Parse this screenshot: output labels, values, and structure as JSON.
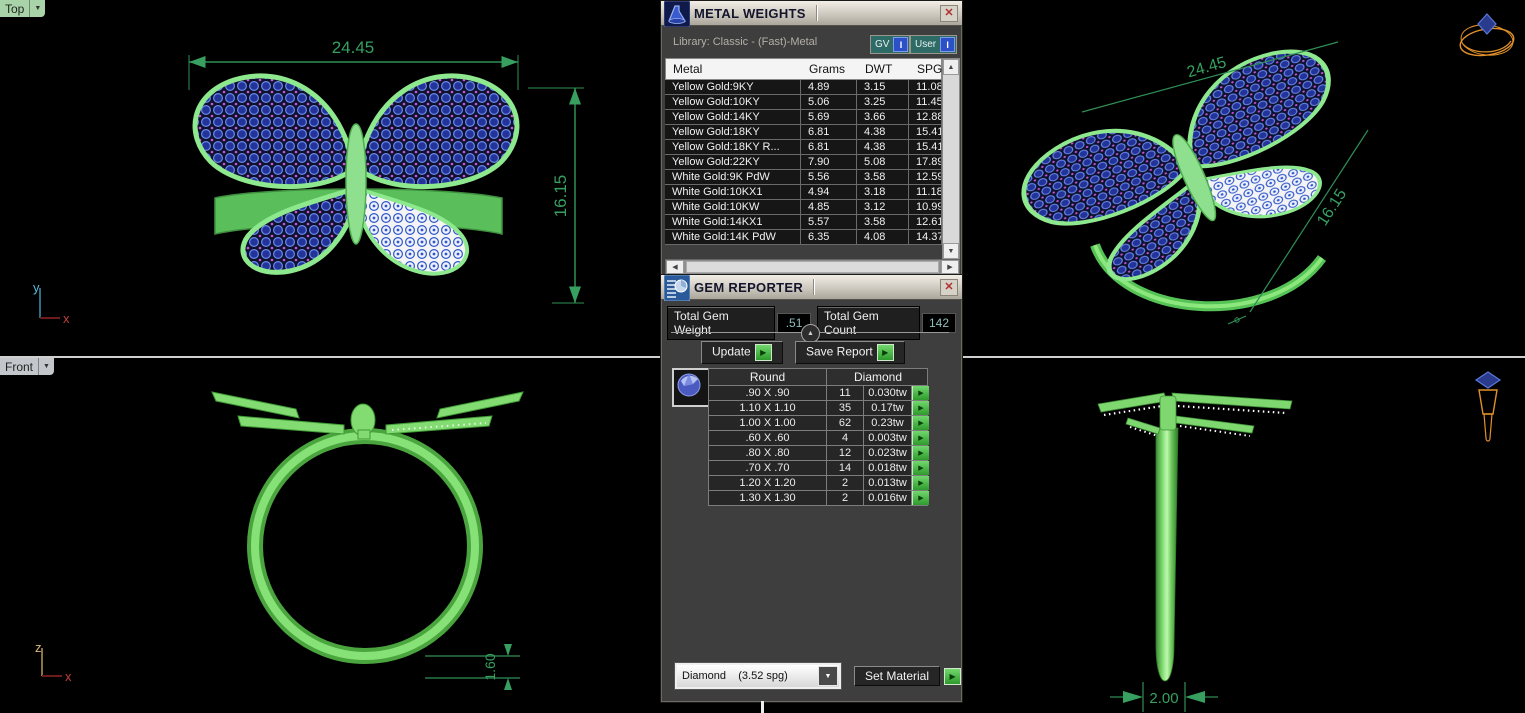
{
  "viewports": {
    "top": {
      "label": "Top",
      "width_dim": "24.45",
      "height_dim": "16.15",
      "axis_v": "y",
      "axis_h": "x"
    },
    "front": {
      "label": "Front",
      "band_dim": "1.60",
      "axis_v": "z",
      "axis_h": "x"
    },
    "perspective": {
      "width_dim": "24.45",
      "height_dim": "16.15"
    },
    "right": {
      "width_dim": "2.00"
    }
  },
  "metal_weights": {
    "title": "METAL WEIGHTS",
    "library_label": "Library: Classic - (Fast)-Metal",
    "toggles": [
      {
        "label": "GV",
        "button": "I"
      },
      {
        "label": "User",
        "button": "I"
      }
    ],
    "columns": [
      "Metal",
      "Grams",
      "DWT",
      "SPG"
    ],
    "rows": [
      [
        "Yellow Gold:9KY",
        "4.89",
        "3.15",
        "11.08"
      ],
      [
        "Yellow Gold:10KY",
        "5.06",
        "3.25",
        "11.45"
      ],
      [
        "Yellow Gold:14KY",
        "5.69",
        "3.66",
        "12.88"
      ],
      [
        "Yellow Gold:18KY",
        "6.81",
        "4.38",
        "15.41"
      ],
      [
        "Yellow Gold:18KY R...",
        "6.81",
        "4.38",
        "15.41"
      ],
      [
        "Yellow Gold:22KY",
        "7.90",
        "5.08",
        "17.89"
      ],
      [
        "White Gold:9K PdW",
        "5.56",
        "3.58",
        "12.59"
      ],
      [
        "White Gold:10KX1",
        "4.94",
        "3.18",
        "11.18"
      ],
      [
        "White Gold:10KW",
        "4.85",
        "3.12",
        "10.99"
      ],
      [
        "White Gold:14KX1",
        "5.57",
        "3.58",
        "12.61"
      ],
      [
        "White Gold:14K PdW",
        "6.35",
        "4.08",
        "14.37"
      ]
    ]
  },
  "gem_reporter": {
    "title": "GEM REPORTER",
    "total_weight_label": "Total Gem Weight",
    "total_weight": ".51",
    "total_count_label": "Total Gem Count",
    "total_count": "142",
    "update_label": "Update",
    "save_report_label": "Save Report",
    "table": {
      "shape_header": "Round",
      "material_header": "Diamond",
      "rows": [
        {
          "size": ".90 X .90",
          "count": "11",
          "weight": "0.030tw"
        },
        {
          "size": "1.10 X 1.10",
          "count": "35",
          "weight": "0.17tw"
        },
        {
          "size": "1.00 X 1.00",
          "count": "62",
          "weight": "0.23tw"
        },
        {
          "size": ".60 X .60",
          "count": "4",
          "weight": "0.003tw"
        },
        {
          "size": ".80 X .80",
          "count": "12",
          "weight": "0.023tw"
        },
        {
          "size": ".70 X .70",
          "count": "14",
          "weight": "0.018tw"
        },
        {
          "size": "1.20 X 1.20",
          "count": "2",
          "weight": "0.013tw"
        },
        {
          "size": "1.30 X 1.30",
          "count": "2",
          "weight": "0.016tw"
        }
      ]
    },
    "material_dropdown_value": "Diamond    (3.52 spg)",
    "set_material_label": "Set Material"
  },
  "icons": {
    "close": "✕",
    "dropdown_arrow": "▼",
    "collapse_arrow": "▲",
    "green_arrow": "▶",
    "scroll_up": "▲",
    "scroll_down": "▼",
    "scroll_left": "◀",
    "scroll_right": "▶"
  },
  "colors": {
    "dimension_green": "#37a060",
    "model_green": "#8ee08e",
    "gem_blue": "#22339a",
    "accent_teal": "#8fbcbc"
  }
}
